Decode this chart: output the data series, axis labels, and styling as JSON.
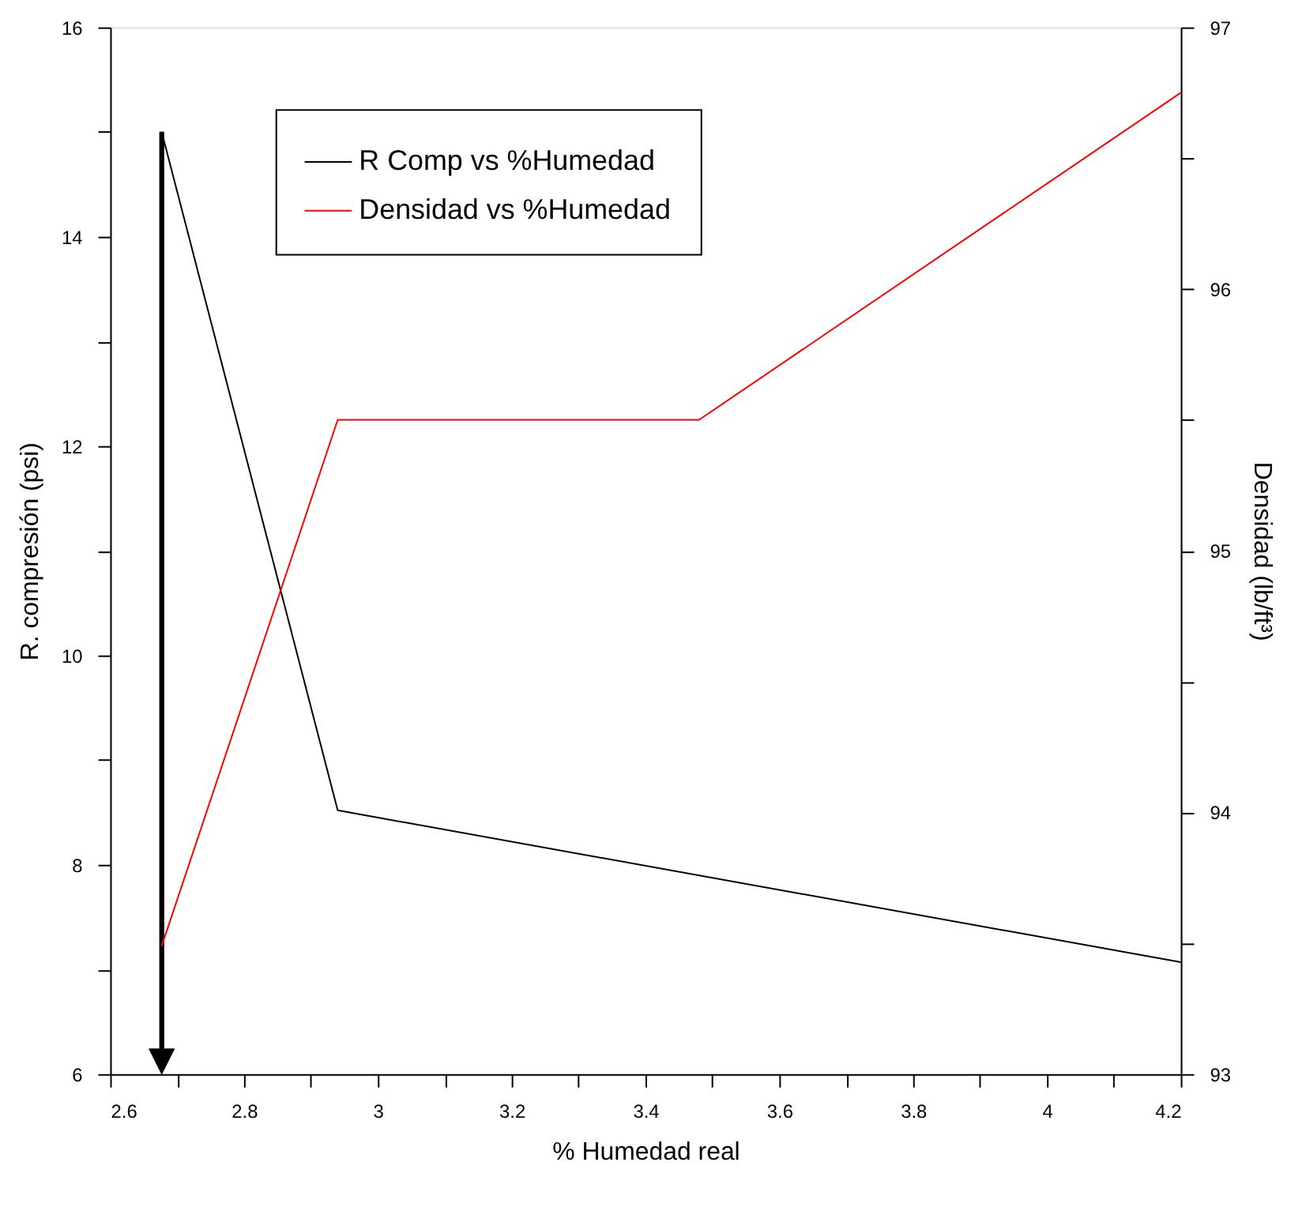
{
  "chart_data": {
    "type": "line",
    "xlabel": "% Humedad real",
    "ylabel": "R. compresión (psi)",
    "y2label": "Densidad (lb/ft³)",
    "x": [
      2.677,
      2.94,
      4.2
    ],
    "series": [
      {
        "name": "R Comp vs %Humedad",
        "color": "#000000",
        "values": [
          15.0,
          8.52,
          7.07
        ]
      },
      {
        "name": "Densidad vs %Humedad",
        "color": "#ff0000",
        "axis": "y2",
        "x": [
          2.677,
          2.94,
          3.48,
          4.2
        ],
        "values": [
          93.49,
          95.5,
          95.5,
          96.75
        ]
      }
    ],
    "xlim": [
      2.6,
      4.2
    ],
    "xticks": [
      2.6,
      {
        "value": 2.7,
        "label": null
      },
      2.8,
      {
        "value": 2.9,
        "label": null
      },
      3,
      {
        "value": 3.1,
        "label": null
      },
      3.2,
      {
        "value": 3.3,
        "label": null
      },
      3.4,
      {
        "value": 3.5,
        "label": null
      },
      3.6,
      {
        "value": 3.7,
        "label": null
      },
      3.8,
      {
        "value": 3.9,
        "label": null
      },
      4,
      {
        "value": 4.1,
        "label": null
      },
      4.2
    ],
    "ylim": [
      6,
      16
    ],
    "yticks": [
      6,
      {
        "value": 7,
        "label": null
      },
      8,
      {
        "value": 9,
        "label": null
      },
      10,
      {
        "value": 11,
        "label": null
      },
      12,
      {
        "value": 13,
        "label": null
      },
      14,
      {
        "value": 15,
        "label": null
      },
      16
    ],
    "y2lim": [
      93,
      97
    ],
    "y2ticks": [
      93,
      {
        "value": 93.5,
        "label": null
      },
      94,
      {
        "value": 94.5,
        "label": null
      },
      95,
      {
        "value": 95.5,
        "label": null
      },
      96,
      {
        "value": 96.5,
        "label": null
      },
      97
    ],
    "grid": false,
    "legend": "top",
    "marker": "none",
    "line_style": "solid"
  }
}
